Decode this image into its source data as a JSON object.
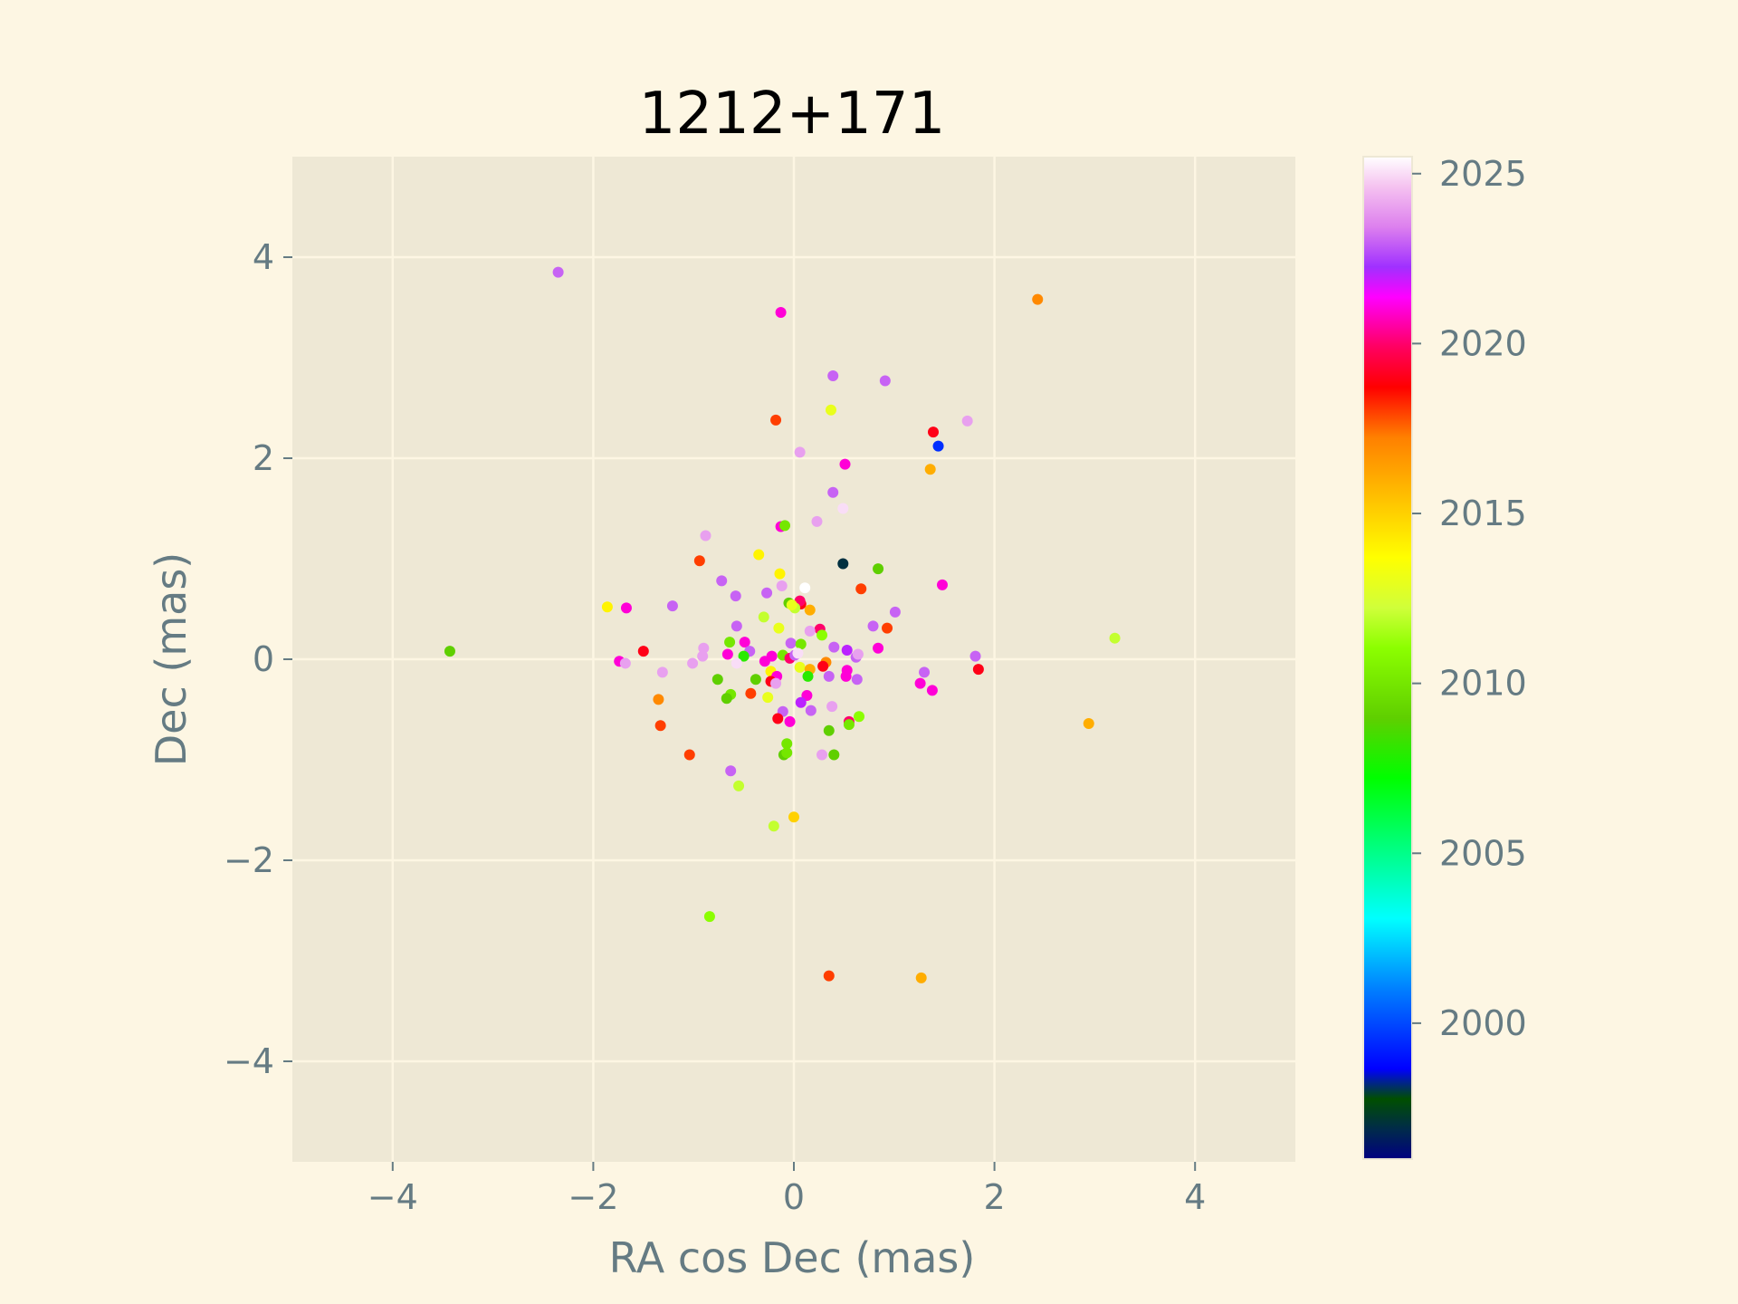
{
  "colors": {
    "page_background": "#fdf6e3",
    "axes_background": "#eee8d5",
    "grid": "#fdf6e3",
    "text": "#657b83",
    "title": "#000000"
  },
  "chart_data": {
    "type": "scatter",
    "title": "1212+171",
    "xlabel": "RA cos Dec (mas)",
    "ylabel": "Dec (mas)",
    "xlim": [
      -5,
      5
    ],
    "ylim": [
      -5,
      5
    ],
    "xticks": [
      -4,
      -2,
      0,
      2,
      4
    ],
    "yticks": [
      -4,
      -2,
      0,
      2,
      4
    ],
    "xtick_labels": [
      "−4",
      "−2",
      "0",
      "2",
      "4"
    ],
    "ytick_labels": [
      "−4",
      "−2",
      "0",
      "2",
      "4"
    ],
    "grid": true,
    "colorbar": {
      "label": "",
      "colormap": "gist_ncar",
      "range": [
        1996,
        2025.5
      ],
      "ticks": [
        2000,
        2005,
        2010,
        2015,
        2020,
        2025
      ],
      "tick_labels": [
        "2000",
        "2005",
        "2010",
        "2015",
        "2020",
        "2025"
      ]
    },
    "points": [
      {
        "x": -2.35,
        "y": 3.85,
        "c": 2023
      },
      {
        "x": -0.13,
        "y": 3.45,
        "c": 2021
      },
      {
        "x": 2.43,
        "y": 3.58,
        "c": 2017
      },
      {
        "x": 0.39,
        "y": 2.82,
        "c": 2023
      },
      {
        "x": 0.91,
        "y": 2.77,
        "c": 2023
      },
      {
        "x": -0.18,
        "y": 2.38,
        "c": 2018
      },
      {
        "x": 0.37,
        "y": 2.48,
        "c": 2013
      },
      {
        "x": 1.73,
        "y": 2.37,
        "c": 2024
      },
      {
        "x": 1.39,
        "y": 2.26,
        "c": 2019
      },
      {
        "x": 1.44,
        "y": 2.12,
        "c": 1999.5
      },
      {
        "x": 0.06,
        "y": 2.06,
        "c": 2024
      },
      {
        "x": 0.51,
        "y": 1.94,
        "c": 2021
      },
      {
        "x": 1.36,
        "y": 1.89,
        "c": 2016
      },
      {
        "x": 0.39,
        "y": 1.66,
        "c": 2023
      },
      {
        "x": 0.49,
        "y": 1.5,
        "c": 2025
      },
      {
        "x": 0.23,
        "y": 1.37,
        "c": 2024
      },
      {
        "x": -0.13,
        "y": 1.32,
        "c": 2021
      },
      {
        "x": -0.09,
        "y": 1.33,
        "c": 2010
      },
      {
        "x": -0.88,
        "y": 1.23,
        "c": 2024
      },
      {
        "x": -0.35,
        "y": 1.04,
        "c": 2014
      },
      {
        "x": -0.94,
        "y": 0.98,
        "c": 2018
      },
      {
        "x": 0.49,
        "y": 0.95,
        "c": 1997
      },
      {
        "x": 0.84,
        "y": 0.9,
        "c": 2009
      },
      {
        "x": -0.14,
        "y": 0.85,
        "c": 2014
      },
      {
        "x": -0.72,
        "y": 0.78,
        "c": 2023
      },
      {
        "x": -0.12,
        "y": 0.73,
        "c": 2024
      },
      {
        "x": 1.48,
        "y": 0.74,
        "c": 2021
      },
      {
        "x": 0.11,
        "y": 0.71,
        "c": 2025.5
      },
      {
        "x": 0.67,
        "y": 0.7,
        "c": 2018
      },
      {
        "x": -0.27,
        "y": 0.66,
        "c": 2023
      },
      {
        "x": -0.58,
        "y": 0.63,
        "c": 2023
      },
      {
        "x": -0.05,
        "y": 0.56,
        "c": 2009
      },
      {
        "x": 0.07,
        "y": 0.55,
        "c": 2019
      },
      {
        "x": 0.06,
        "y": 0.58,
        "c": 2020
      },
      {
        "x": 0.01,
        "y": 0.51,
        "c": 2012
      },
      {
        "x": -0.02,
        "y": 0.54,
        "c": 2013
      },
      {
        "x": 0.16,
        "y": 0.49,
        "c": 2016
      },
      {
        "x": -1.86,
        "y": 0.52,
        "c": 2014
      },
      {
        "x": -1.67,
        "y": 0.51,
        "c": 2021
      },
      {
        "x": -1.21,
        "y": 0.53,
        "c": 2023
      },
      {
        "x": 1.01,
        "y": 0.47,
        "c": 2023
      },
      {
        "x": -0.3,
        "y": 0.42,
        "c": 2012
      },
      {
        "x": -0.57,
        "y": 0.33,
        "c": 2023
      },
      {
        "x": 0.79,
        "y": 0.33,
        "c": 2023
      },
      {
        "x": 0.93,
        "y": 0.31,
        "c": 2018
      },
      {
        "x": -0.15,
        "y": 0.31,
        "c": 2013
      },
      {
        "x": 0.26,
        "y": 0.3,
        "c": 2020
      },
      {
        "x": 0.28,
        "y": 0.24,
        "c": 2011
      },
      {
        "x": 3.2,
        "y": 0.21,
        "c": 2012
      },
      {
        "x": 0.16,
        "y": 0.28,
        "c": 2024
      },
      {
        "x": -0.49,
        "y": 0.17,
        "c": 2021
      },
      {
        "x": -0.64,
        "y": 0.17,
        "c": 2010
      },
      {
        "x": -0.03,
        "y": 0.16,
        "c": 2023
      },
      {
        "x": 0.07,
        "y": 0.15,
        "c": 2010
      },
      {
        "x": -0.9,
        "y": 0.11,
        "c": 2024
      },
      {
        "x": 0.4,
        "y": 0.12,
        "c": 2023
      },
      {
        "x": 0.84,
        "y": 0.11,
        "c": 2021
      },
      {
        "x": 0.53,
        "y": 0.09,
        "c": 2022
      },
      {
        "x": -1.5,
        "y": 0.08,
        "c": 2019
      },
      {
        "x": -3.43,
        "y": 0.08,
        "c": 2009
      },
      {
        "x": -0.66,
        "y": 0.05,
        "c": 2021
      },
      {
        "x": -0.44,
        "y": 0.08,
        "c": 2023
      },
      {
        "x": -0.91,
        "y": 0.03,
        "c": 2024
      },
      {
        "x": -0.22,
        "y": 0.03,
        "c": 2021
      },
      {
        "x": -0.11,
        "y": 0.04,
        "c": 2010
      },
      {
        "x": -0.04,
        "y": 0.01,
        "c": 2020
      },
      {
        "x": 0.01,
        "y": 0.04,
        "c": 2023
      },
      {
        "x": 0.04,
        "y": 0.06,
        "c": 2025
      },
      {
        "x": -0.5,
        "y": 0.03,
        "c": 2008
      },
      {
        "x": 0.62,
        "y": 0.02,
        "c": 2023
      },
      {
        "x": 0.64,
        "y": 0.05,
        "c": 2024
      },
      {
        "x": 1.81,
        "y": 0.03,
        "c": 2023
      },
      {
        "x": -1.74,
        "y": -0.02,
        "c": 2021
      },
      {
        "x": -1.68,
        "y": -0.04,
        "c": 2024
      },
      {
        "x": -1.01,
        "y": -0.04,
        "c": 2024
      },
      {
        "x": -0.29,
        "y": -0.02,
        "c": 2021
      },
      {
        "x": -0.57,
        "y": -0.04,
        "c": 2025
      },
      {
        "x": 0.32,
        "y": -0.03,
        "c": 2017
      },
      {
        "x": 0.29,
        "y": -0.07,
        "c": 2019
      },
      {
        "x": 0.06,
        "y": -0.08,
        "c": 2013
      },
      {
        "x": 0.16,
        "y": -0.1,
        "c": 2016
      },
      {
        "x": -0.23,
        "y": -0.12,
        "c": 2014
      },
      {
        "x": 0.53,
        "y": -0.11,
        "c": 2021
      },
      {
        "x": 1.84,
        "y": -0.1,
        "c": 2019
      },
      {
        "x": 1.3,
        "y": -0.13,
        "c": 2023
      },
      {
        "x": -1.31,
        "y": -0.13,
        "c": 2024
      },
      {
        "x": -0.17,
        "y": -0.17,
        "c": 2021
      },
      {
        "x": 0.14,
        "y": -0.17,
        "c": 2008
      },
      {
        "x": 0.35,
        "y": -0.17,
        "c": 2023
      },
      {
        "x": 0.52,
        "y": -0.17,
        "c": 2021
      },
      {
        "x": 0.63,
        "y": -0.2,
        "c": 2023
      },
      {
        "x": -0.76,
        "y": -0.2,
        "c": 2009
      },
      {
        "x": -0.38,
        "y": -0.2,
        "c": 2009
      },
      {
        "x": -0.23,
        "y": -0.22,
        "c": 2019
      },
      {
        "x": -0.18,
        "y": -0.24,
        "c": 2024
      },
      {
        "x": 1.26,
        "y": -0.24,
        "c": 2021
      },
      {
        "x": 1.38,
        "y": -0.31,
        "c": 2021
      },
      {
        "x": -0.43,
        "y": -0.34,
        "c": 2018
      },
      {
        "x": -0.63,
        "y": -0.35,
        "c": 2010
      },
      {
        "x": -0.67,
        "y": -0.39,
        "c": 2009
      },
      {
        "x": -0.26,
        "y": -0.38,
        "c": 2013
      },
      {
        "x": 0.13,
        "y": -0.36,
        "c": 2021
      },
      {
        "x": -1.35,
        "y": -0.4,
        "c": 2017
      },
      {
        "x": 0.07,
        "y": -0.43,
        "c": 2022
      },
      {
        "x": 0.38,
        "y": -0.47,
        "c": 2024
      },
      {
        "x": -0.11,
        "y": -0.52,
        "c": 2023
      },
      {
        "x": 0.17,
        "y": -0.51,
        "c": 2023
      },
      {
        "x": -0.16,
        "y": -0.59,
        "c": 2019
      },
      {
        "x": -0.04,
        "y": -0.62,
        "c": 2021
      },
      {
        "x": 0.55,
        "y": -0.62,
        "c": 2020
      },
      {
        "x": 0.65,
        "y": -0.57,
        "c": 2011
      },
      {
        "x": 0.55,
        "y": -0.65,
        "c": 2010
      },
      {
        "x": -1.33,
        "y": -0.66,
        "c": 2018
      },
      {
        "x": 2.94,
        "y": -0.64,
        "c": 2016
      },
      {
        "x": 0.35,
        "y": -0.71,
        "c": 2009
      },
      {
        "x": -0.07,
        "y": -0.84,
        "c": 2010
      },
      {
        "x": -1.04,
        "y": -0.95,
        "c": 2018
      },
      {
        "x": -0.1,
        "y": -0.95,
        "c": 2009
      },
      {
        "x": -0.07,
        "y": -0.93,
        "c": 2010
      },
      {
        "x": 0.28,
        "y": -0.95,
        "c": 2024
      },
      {
        "x": 0.4,
        "y": -0.95,
        "c": 2009
      },
      {
        "x": -0.63,
        "y": -1.11,
        "c": 2023
      },
      {
        "x": -0.55,
        "y": -1.26,
        "c": 2012
      },
      {
        "x": 0.0,
        "y": -1.57,
        "c": 2015
      },
      {
        "x": -0.2,
        "y": -1.66,
        "c": 2012
      },
      {
        "x": -0.84,
        "y": -2.56,
        "c": 2011
      },
      {
        "x": 0.35,
        "y": -3.15,
        "c": 2018
      },
      {
        "x": 1.27,
        "y": -3.17,
        "c": 2016
      }
    ]
  }
}
